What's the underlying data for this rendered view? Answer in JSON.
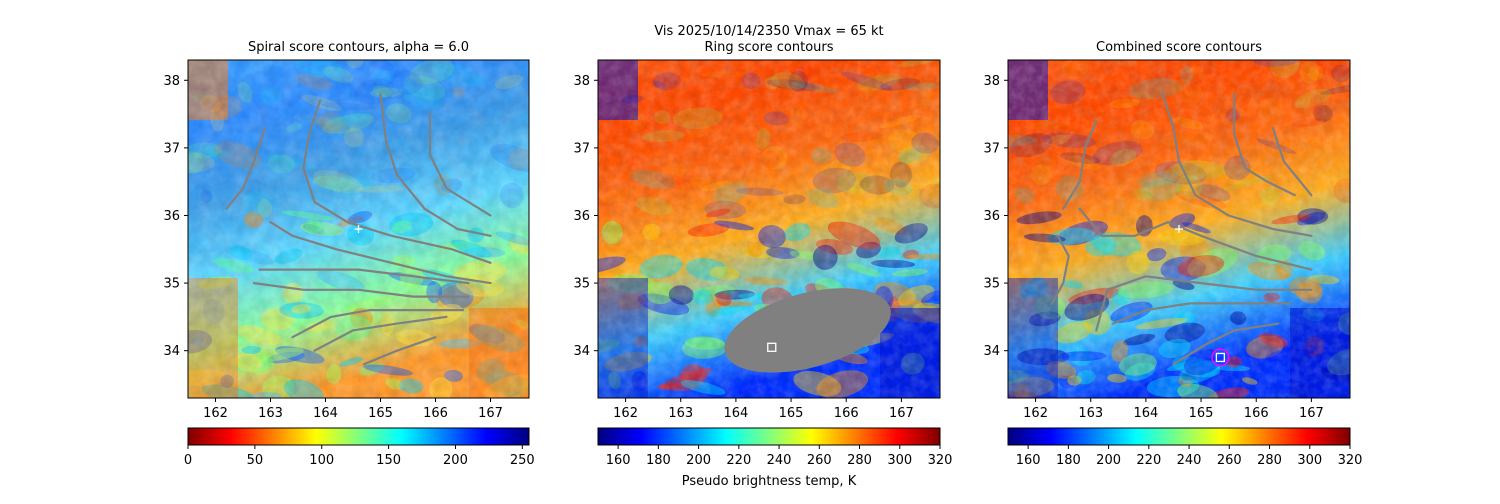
{
  "figure": {
    "suptitle": "Vis  2025/10/14/2350    Vmax = 65 kt"
  },
  "colors": {
    "contour": "#808080",
    "mask": "#808080",
    "center_marker": "#ffffff",
    "ring_circle": "#ff00ff"
  },
  "chart_data": [
    {
      "type": "heatmap",
      "title": "Spiral score contours, alpha =  6.0",
      "xlim": [
        161.5,
        167.7
      ],
      "ylim": [
        33.3,
        38.3
      ],
      "xticks": [
        162,
        163,
        164,
        165,
        166,
        167
      ],
      "yticks": [
        34,
        35,
        36,
        37,
        38
      ],
      "colormap": "jet_r",
      "colorbar": {
        "min": 0,
        "max": 255,
        "ticks": [
          0,
          50,
          100,
          150,
          200,
          250
        ],
        "label": ""
      },
      "center_marker": {
        "x": 164.6,
        "y": 35.8
      },
      "contours": [
        [
          [
            162.2,
            36.1
          ],
          [
            162.5,
            36.4
          ],
          [
            162.7,
            36.8
          ],
          [
            162.9,
            37.3
          ]
        ],
        [
          [
            163.9,
            37.7
          ],
          [
            163.7,
            37.2
          ],
          [
            163.6,
            36.7
          ],
          [
            163.8,
            36.2
          ],
          [
            164.4,
            35.9
          ],
          [
            165.2,
            35.7
          ],
          [
            166.3,
            35.5
          ],
          [
            167.0,
            35.3
          ]
        ],
        [
          [
            165.0,
            37.8
          ],
          [
            165.1,
            37.1
          ],
          [
            165.3,
            36.6
          ],
          [
            165.8,
            36.1
          ],
          [
            166.4,
            35.8
          ],
          [
            167.0,
            35.7
          ]
        ],
        [
          [
            165.9,
            37.5
          ],
          [
            165.9,
            36.9
          ],
          [
            166.2,
            36.4
          ],
          [
            166.6,
            36.2
          ],
          [
            167.0,
            36.0
          ]
        ],
        [
          [
            163.0,
            35.9
          ],
          [
            163.4,
            35.7
          ],
          [
            164.2,
            35.5
          ],
          [
            165.2,
            35.3
          ],
          [
            166.2,
            35.1
          ],
          [
            167.0,
            35.0
          ]
        ],
        [
          [
            162.8,
            35.2
          ],
          [
            163.6,
            35.2
          ],
          [
            164.6,
            35.2
          ],
          [
            165.6,
            35.1
          ],
          [
            166.6,
            35.0
          ]
        ],
        [
          [
            162.7,
            35.0
          ],
          [
            163.6,
            34.9
          ],
          [
            164.6,
            34.9
          ],
          [
            165.6,
            34.8
          ],
          [
            166.6,
            34.8
          ]
        ],
        [
          [
            163.4,
            34.2
          ],
          [
            164.1,
            34.5
          ],
          [
            164.8,
            34.6
          ],
          [
            165.6,
            34.6
          ],
          [
            166.5,
            34.6
          ]
        ],
        [
          [
            163.8,
            34.0
          ],
          [
            164.5,
            34.3
          ],
          [
            165.3,
            34.4
          ],
          [
            166.2,
            34.5
          ]
        ],
        [
          [
            164.7,
            33.8
          ],
          [
            165.3,
            34.0
          ],
          [
            166.0,
            34.2
          ]
        ]
      ]
    },
    {
      "type": "heatmap",
      "title": "Ring score contours",
      "xlim": [
        161.5,
        167.7
      ],
      "ylim": [
        33.3,
        38.3
      ],
      "xticks": [
        162,
        163,
        164,
        165,
        166,
        167
      ],
      "yticks": [
        34,
        35,
        36,
        37,
        38
      ],
      "colormap": "jet",
      "colorbar": {
        "min": 150,
        "max": 320,
        "ticks": [
          160,
          180,
          200,
          220,
          240,
          260,
          280,
          300,
          320
        ],
        "label": "Pseudo brightness temp, K"
      },
      "mask_ellipse": {
        "cx": 165.3,
        "cy": 34.3,
        "rx": 1.55,
        "ry": 0.55,
        "rotation": -15
      },
      "square_marker": {
        "x": 164.65,
        "y": 34.05
      }
    },
    {
      "type": "heatmap",
      "title": "Combined score contours",
      "xlim": [
        161.5,
        167.7
      ],
      "ylim": [
        33.3,
        38.3
      ],
      "xticks": [
        162,
        163,
        164,
        165,
        166,
        167
      ],
      "yticks": [
        34,
        35,
        36,
        37,
        38
      ],
      "colormap": "jet",
      "colorbar": {
        "min": 150,
        "max": 320,
        "ticks": [
          160,
          180,
          200,
          220,
          240,
          260,
          280,
          300,
          320
        ],
        "label": ""
      },
      "center_marker": {
        "x": 164.6,
        "y": 35.8
      },
      "square_marker": {
        "x": 165.35,
        "y": 33.9
      },
      "ring_circle": {
        "x": 165.35,
        "y": 33.9,
        "r": 0.15
      },
      "contours": [
        [
          [
            162.5,
            36.1
          ],
          [
            162.8,
            36.5
          ],
          [
            162.9,
            37.0
          ],
          [
            163.1,
            37.4
          ]
        ],
        [
          [
            164.3,
            37.8
          ],
          [
            164.5,
            37.3
          ],
          [
            164.6,
            36.8
          ],
          [
            164.9,
            36.3
          ],
          [
            165.5,
            36.0
          ],
          [
            166.3,
            35.8
          ],
          [
            167.0,
            35.7
          ]
        ],
        [
          [
            165.6,
            37.8
          ],
          [
            165.6,
            37.2
          ],
          [
            165.8,
            36.7
          ],
          [
            166.2,
            36.5
          ],
          [
            166.7,
            36.3
          ]
        ],
        [
          [
            166.3,
            37.3
          ],
          [
            166.5,
            36.8
          ],
          [
            167.0,
            36.3
          ]
        ],
        [
          [
            162.8,
            36.1
          ],
          [
            163.2,
            35.7
          ],
          [
            163.8,
            35.7
          ],
          [
            164.4,
            35.9
          ],
          [
            165.0,
            35.7
          ],
          [
            166.0,
            35.4
          ],
          [
            167.0,
            35.2
          ]
        ],
        [
          [
            162.4,
            35.7
          ],
          [
            162.6,
            35.4
          ],
          [
            162.5,
            35.0
          ],
          [
            162.3,
            34.7
          ]
        ],
        [
          [
            163.1,
            34.3
          ],
          [
            163.3,
            34.9
          ],
          [
            164.0,
            35.1
          ],
          [
            165.0,
            35.0
          ],
          [
            166.0,
            34.9
          ],
          [
            167.0,
            34.9
          ]
        ],
        [
          [
            163.4,
            34.4
          ],
          [
            164.0,
            34.6
          ],
          [
            164.8,
            34.7
          ],
          [
            165.6,
            34.7
          ],
          [
            166.6,
            34.7
          ]
        ],
        [
          [
            164.5,
            33.8
          ],
          [
            165.1,
            34.1
          ],
          [
            165.6,
            34.3
          ],
          [
            166.4,
            34.4
          ]
        ]
      ]
    }
  ]
}
